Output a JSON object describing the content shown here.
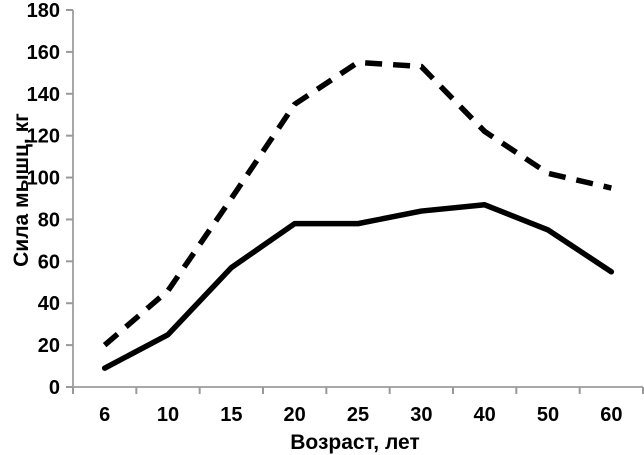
{
  "chart_data": {
    "type": "line",
    "title": "",
    "xlabel": "Возраст, лет",
    "ylabel": "Сила мышц, кг",
    "categories": [
      "6",
      "10",
      "15",
      "20",
      "25",
      "30",
      "40",
      "50",
      "60"
    ],
    "y_ticks": [
      0,
      20,
      40,
      60,
      80,
      100,
      120,
      140,
      160,
      180
    ],
    "ylim": [
      0,
      180
    ],
    "grid": false,
    "legend": "none",
    "series": [
      {
        "name": "dashed-line",
        "style": "dashed",
        "values": [
          20,
          46,
          90,
          135,
          155,
          153,
          122,
          102,
          95
        ]
      },
      {
        "name": "solid-line",
        "style": "solid",
        "values": [
          9,
          25,
          57,
          78,
          78,
          84,
          87,
          75,
          55
        ]
      }
    ],
    "colors": {
      "line": "#000000",
      "axis": "#a8a8a8",
      "text": "#000000"
    }
  }
}
